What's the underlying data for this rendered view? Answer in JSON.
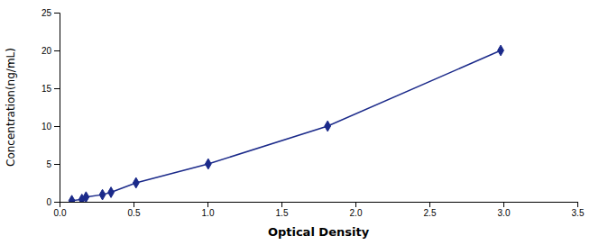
{
  "chart_data": {
    "type": "line",
    "xlabel": "Optical Density",
    "ylabel": "Concentration(ng/mL)",
    "x": [
      0.083,
      0.151,
      0.179,
      0.29,
      0.348,
      0.517,
      1.005,
      1.812,
      2.982
    ],
    "values": [
      0.156,
      0.312,
      0.625,
      0.938,
      1.25,
      2.5,
      5.0,
      10.0,
      20.0
    ],
    "color": "#1B2A8A",
    "marker": "diamond",
    "xlim": [
      0,
      3.5
    ],
    "ylim": [
      0,
      25
    ],
    "xticks": [
      {
        "value": 0.0,
        "label": "0.0"
      },
      0.5,
      {
        "value": 1.0,
        "label": "1.0"
      },
      1.5,
      {
        "value": 2.0,
        "label": "2.0"
      },
      2.5,
      {
        "value": 3.0,
        "label": "3.0"
      },
      3.5
    ],
    "yticks": [
      0,
      5,
      10,
      15,
      20,
      25
    ],
    "grid": false
  }
}
